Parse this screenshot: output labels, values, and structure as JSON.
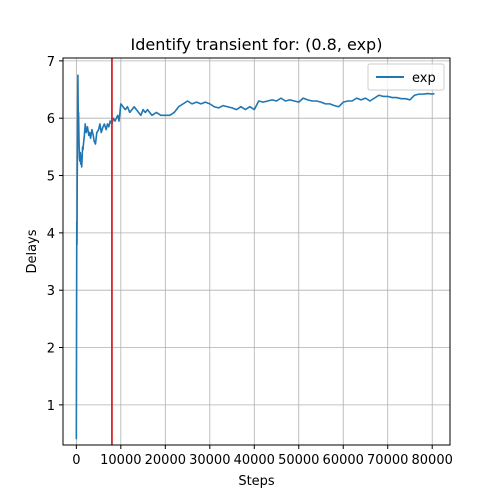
{
  "chart_data": {
    "type": "line",
    "title": "Identify transient for: (0.8, exp)",
    "xlabel": "Steps",
    "ylabel": "Delays",
    "xlim": [
      -3000,
      84000
    ],
    "ylim": [
      0.3,
      7.05
    ],
    "xticks": [
      0,
      10000,
      20000,
      30000,
      40000,
      50000,
      60000,
      70000,
      80000
    ],
    "xtick_labels": [
      "0",
      "10000",
      "20000",
      "30000",
      "40000",
      "50000",
      "60000",
      "70000",
      "80000"
    ],
    "yticks": [
      1,
      2,
      3,
      4,
      5,
      6,
      7
    ],
    "ytick_labels": [
      "1",
      "2",
      "3",
      "4",
      "5",
      "6",
      "7"
    ],
    "grid": true,
    "legend": {
      "placement": "top-right",
      "entries": [
        "exp"
      ]
    },
    "series": [
      {
        "name": "exp",
        "color": "#1f77b4",
        "x": [
          0,
          50,
          100,
          150,
          200,
          250,
          300,
          350,
          400,
          450,
          500,
          600,
          700,
          800,
          900,
          1000,
          1100,
          1200,
          1300,
          1400,
          1500,
          1600,
          1800,
          2000,
          2200,
          2500,
          2800,
          3000,
          3200,
          3500,
          3800,
          4000,
          4300,
          4600,
          5000,
          5300,
          5600,
          6000,
          6300,
          6700,
          7000,
          7300,
          7600,
          8000,
          8300,
          8700,
          9000,
          9300,
          9600,
          10000,
          10500,
          11000,
          11500,
          12000,
          12500,
          13000,
          13500,
          14000,
          14500,
          15000,
          15500,
          16000,
          17000,
          18000,
          19000,
          20000,
          21000,
          22000,
          23000,
          24000,
          25000,
          26000,
          27000,
          28000,
          29000,
          30000,
          31000,
          32000,
          33000,
          34000,
          35000,
          36000,
          37000,
          38000,
          39000,
          40000,
          41000,
          42000,
          43000,
          44000,
          45000,
          46000,
          47000,
          48000,
          49000,
          50000,
          51000,
          52000,
          53000,
          54000,
          55000,
          56000,
          57000,
          58000,
          59000,
          60000,
          61000,
          62000,
          63000,
          64000,
          65000,
          66000,
          67000,
          68000,
          69000,
          70000,
          71000,
          72000,
          73000,
          74000,
          75000,
          76000,
          77000,
          78000,
          79000,
          80000,
          80500
        ],
        "y": [
          0.4,
          2.5,
          4.2,
          3.8,
          4.9,
          5.5,
          6.2,
          6.75,
          6.3,
          5.9,
          6.1,
          5.6,
          5.3,
          5.25,
          5.4,
          5.2,
          5.35,
          5.15,
          5.3,
          5.5,
          5.45,
          5.55,
          5.7,
          5.9,
          5.75,
          5.85,
          5.7,
          5.75,
          5.65,
          5.8,
          5.7,
          5.6,
          5.55,
          5.75,
          5.8,
          5.9,
          5.75,
          5.85,
          5.9,
          5.8,
          5.9,
          5.85,
          5.95,
          5.9,
          6.0,
          5.95,
          6.0,
          6.05,
          5.95,
          6.25,
          6.2,
          6.15,
          6.2,
          6.1,
          6.15,
          6.2,
          6.15,
          6.1,
          6.05,
          6.15,
          6.1,
          6.15,
          6.05,
          6.1,
          6.05,
          6.05,
          6.05,
          6.1,
          6.2,
          6.25,
          6.3,
          6.25,
          6.28,
          6.25,
          6.28,
          6.25,
          6.2,
          6.18,
          6.22,
          6.2,
          6.18,
          6.15,
          6.2,
          6.15,
          6.2,
          6.15,
          6.3,
          6.28,
          6.3,
          6.32,
          6.3,
          6.35,
          6.3,
          6.32,
          6.3,
          6.28,
          6.35,
          6.32,
          6.3,
          6.3,
          6.28,
          6.25,
          6.25,
          6.22,
          6.2,
          6.28,
          6.3,
          6.3,
          6.35,
          6.32,
          6.35,
          6.3,
          6.35,
          6.4,
          6.38,
          6.38,
          6.36,
          6.36,
          6.34,
          6.34,
          6.32,
          6.4,
          6.42,
          6.42,
          6.43,
          6.42,
          6.43
        ]
      }
    ],
    "annotations": [
      {
        "type": "vline",
        "x": 8000,
        "color": "#d62728"
      }
    ]
  }
}
